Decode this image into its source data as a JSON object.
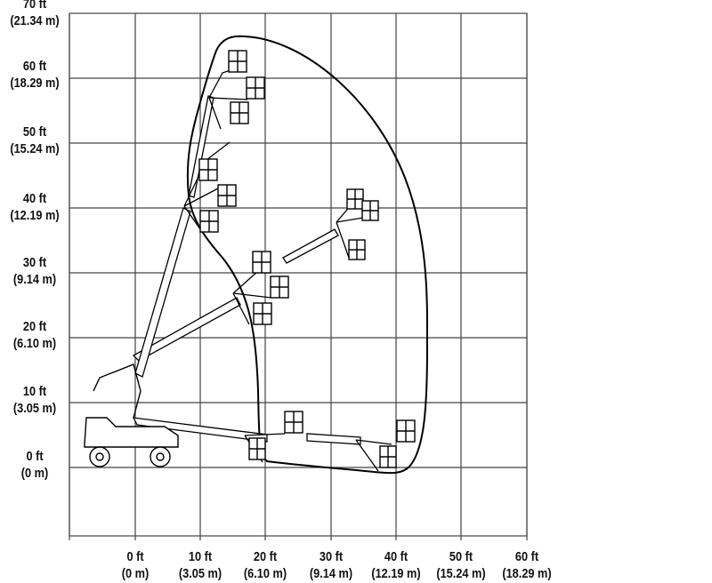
{
  "y_axis": [
    {
      "ft": "70 ft",
      "m": "(21.34 m)"
    },
    {
      "ft": "60 ft",
      "m": "(18.29 m)"
    },
    {
      "ft": "50 ft",
      "m": "(15.24 m)"
    },
    {
      "ft": "40 ft",
      "m": "(12.19 m)"
    },
    {
      "ft": "30 ft",
      "m": "(9.14 m)"
    },
    {
      "ft": "20 ft",
      "m": "(6.10 m)"
    },
    {
      "ft": "10 ft",
      "m": "(3.05 m)"
    },
    {
      "ft": "0 ft",
      "m": "(0 m)"
    }
  ],
  "x_axis": [
    {
      "ft": "0 ft",
      "m": "(0 m)"
    },
    {
      "ft": "10 ft",
      "m": "(3.05 m)"
    },
    {
      "ft": "20 ft",
      "m": "(6.10 m)"
    },
    {
      "ft": "30 ft",
      "m": "(9.14 m)"
    },
    {
      "ft": "40 ft",
      "m": "(12.19 m)"
    },
    {
      "ft": "50 ft",
      "m": "(15.24 m)"
    },
    {
      "ft": "60 ft",
      "m": "(18.29 m)"
    }
  ]
}
